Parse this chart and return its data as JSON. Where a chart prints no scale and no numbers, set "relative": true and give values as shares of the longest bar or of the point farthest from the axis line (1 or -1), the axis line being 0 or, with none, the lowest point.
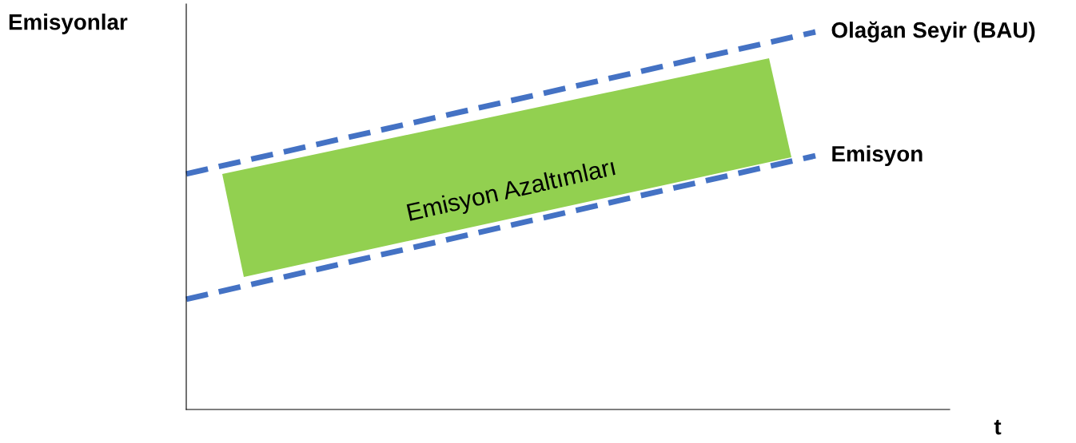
{
  "chart_data": {
    "type": "line",
    "relative": true,
    "ylabel": "Emisyonlar",
    "xlabel": "t",
    "categories": [
      null,
      null
    ],
    "line_style": "dashed",
    "marker": "none",
    "legend": false,
    "series": [
      {
        "name": "Olağan Seyir (BAU)",
        "color": "#4472c4",
        "values": [
          0.624,
          1.0
        ]
      },
      {
        "name": "Emisyon",
        "color": "#4472c4",
        "values": [
          0.292,
          0.672
        ]
      }
    ],
    "annotations": [
      "Emisyon Azaltımları"
    ]
  }
}
